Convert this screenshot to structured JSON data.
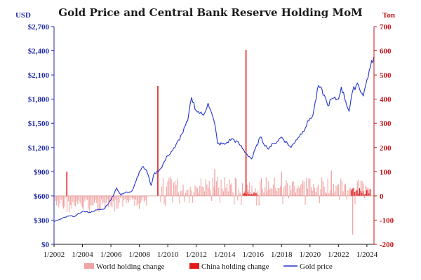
{
  "chart_data": {
    "type": "bar+line",
    "title": "Gold Price and Central Bank Reserve Holding MoM",
    "left_axis": {
      "unit": "USD",
      "range": [
        0,
        2700
      ],
      "ticks": [
        0,
        300,
        600,
        900,
        1200,
        1500,
        1800,
        2100,
        2400,
        2700
      ],
      "tick_labels": [
        "$0",
        "$300",
        "$600",
        "$900",
        "$1,200",
        "$1,500",
        "$1,800",
        "$2,100",
        "$2,400",
        "$2,700"
      ],
      "color": "#1f2aa8"
    },
    "right_axis": {
      "unit": "Ton",
      "range": [
        -200,
        700
      ],
      "ticks": [
        -200,
        -100,
        0,
        100,
        200,
        300,
        400,
        500,
        600,
        700
      ],
      "tick_labels": [
        "-200",
        "-100",
        "0",
        "100",
        "200",
        "300",
        "400",
        "500",
        "600",
        "700"
      ],
      "color": "#c0161c"
    },
    "x_axis": {
      "range": [
        2002.0,
        2024.5
      ],
      "ticks": [
        2002,
        2004,
        2006,
        2008,
        2010,
        2012,
        2014,
        2016,
        2018,
        2020,
        2022,
        2024
      ],
      "tick_labels": [
        "1/2002",
        "1/2004",
        "1/2006",
        "1/2008",
        "1/2010",
        "1/2012",
        "1/2014",
        "1/2016",
        "1/2018",
        "1/2020",
        "1/2022",
        "1/2024"
      ]
    },
    "legend": {
      "placement": "bottom",
      "items": [
        {
          "label": "World holding change",
          "kind": "bar",
          "color": "#f2a3a3"
        },
        {
          "label": "China holding change",
          "kind": "bar",
          "color": "#e11a1a"
        },
        {
          "label": "Gold price",
          "kind": "line",
          "color": "#2233cc"
        }
      ]
    },
    "series": [
      {
        "name": "Gold price",
        "axis": "left",
        "unit": "USD",
        "points": [
          [
            2002.0,
            280
          ],
          [
            2002.5,
            315
          ],
          [
            2003.0,
            350
          ],
          [
            2003.5,
            350
          ],
          [
            2004.0,
            410
          ],
          [
            2004.5,
            395
          ],
          [
            2005.0,
            425
          ],
          [
            2005.5,
            435
          ],
          [
            2006.0,
            550
          ],
          [
            2006.4,
            700
          ],
          [
            2006.7,
            610
          ],
          [
            2007.0,
            640
          ],
          [
            2007.5,
            665
          ],
          [
            2008.0,
            900
          ],
          [
            2008.2,
            960
          ],
          [
            2008.5,
            920
          ],
          [
            2008.83,
            730
          ],
          [
            2009.0,
            860
          ],
          [
            2009.5,
            940
          ],
          [
            2010.0,
            1100
          ],
          [
            2010.5,
            1200
          ],
          [
            2011.0,
            1370
          ],
          [
            2011.4,
            1530
          ],
          [
            2011.67,
            1820
          ],
          [
            2012.0,
            1660
          ],
          [
            2012.5,
            1600
          ],
          [
            2012.83,
            1750
          ],
          [
            2013.0,
            1670
          ],
          [
            2013.33,
            1470
          ],
          [
            2013.5,
            1250
          ],
          [
            2014.0,
            1240
          ],
          [
            2014.5,
            1310
          ],
          [
            2015.0,
            1250
          ],
          [
            2015.5,
            1130
          ],
          [
            2015.9,
            1060
          ],
          [
            2016.5,
            1330
          ],
          [
            2017.0,
            1190
          ],
          [
            2017.5,
            1250
          ],
          [
            2018.0,
            1330
          ],
          [
            2018.67,
            1200
          ],
          [
            2019.0,
            1290
          ],
          [
            2019.5,
            1400
          ],
          [
            2020.0,
            1560
          ],
          [
            2020.2,
            1600
          ],
          [
            2020.6,
            1970
          ],
          [
            2021.0,
            1850
          ],
          [
            2021.25,
            1720
          ],
          [
            2021.5,
            1800
          ],
          [
            2022.0,
            1800
          ],
          [
            2022.2,
            1950
          ],
          [
            2022.75,
            1650
          ],
          [
            2023.0,
            1900
          ],
          [
            2023.33,
            2000
          ],
          [
            2023.75,
            1840
          ],
          [
            2024.0,
            2040
          ],
          [
            2024.25,
            2200
          ],
          [
            2024.5,
            2330
          ]
        ]
      },
      {
        "name": "World holding change",
        "axis": "right",
        "unit": "Ton",
        "color": "#f2a3a3",
        "negative_span": [
          2002.0,
          2008.5
        ],
        "positive_span": [
          2009.5,
          2024.3
        ],
        "min": -160,
        "max": 115,
        "highlights": [
          [
            2023.0,
            -160
          ],
          [
            2013.3,
            110
          ],
          [
            2018.0,
            100
          ],
          [
            2021.5,
            105
          ]
        ]
      },
      {
        "name": "China holding change",
        "axis": "right",
        "unit": "Ton",
        "color": "#e11a1a",
        "spikes": [
          [
            2002.9,
            100
          ],
          [
            2009.3,
            454
          ],
          [
            2015.5,
            604
          ]
        ],
        "recent_span": [
          2022.9,
          2024.3
        ],
        "recent_max": 35
      }
    ]
  }
}
